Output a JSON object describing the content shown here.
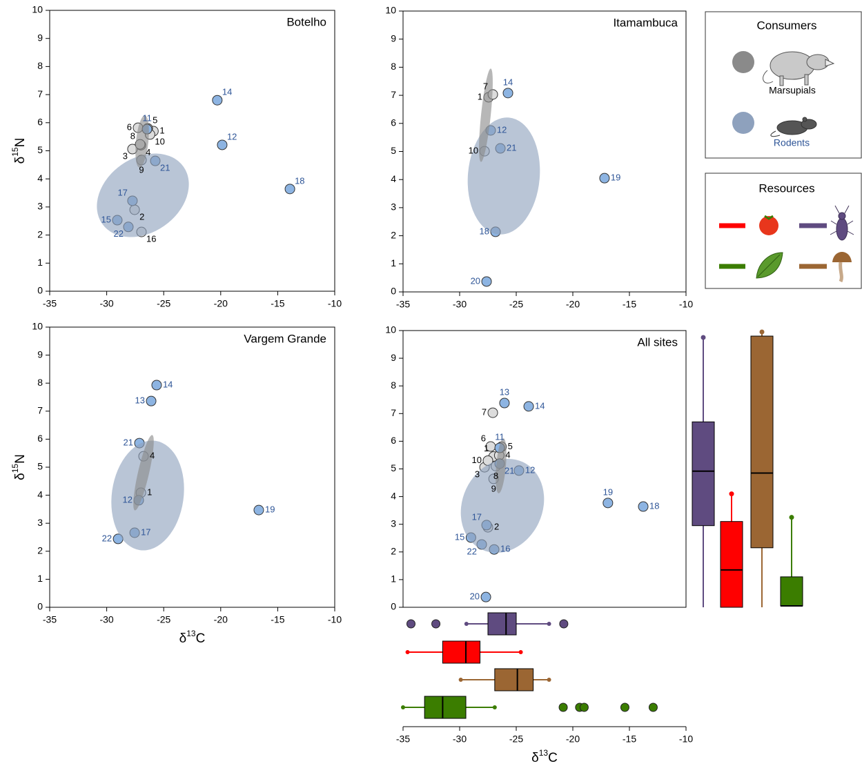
{
  "chart_data": [
    {
      "type": "scatter",
      "title": "Botelho",
      "xlim": [
        -35,
        -10
      ],
      "ylim": [
        0,
        10
      ],
      "xticks": [
        -35,
        -30,
        -25,
        -20,
        -15,
        -10
      ],
      "yticks": [
        0,
        1,
        2,
        3,
        4,
        5,
        6,
        7,
        8,
        9,
        10
      ],
      "ylabel": [
        "δ",
        "15",
        "N"
      ],
      "series": [
        {
          "color": "#dcdcdc",
          "label_color": "#000000",
          "labels": [
            "1",
            "2",
            "3",
            "4",
            "5",
            "6",
            "8",
            "9",
            "10",
            "16"
          ],
          "x": [
            -25.9,
            -27.55,
            -27.74,
            -27.0,
            -26.4,
            -27.25,
            -27.07,
            -26.95,
            -26.2,
            -26.95
          ],
          "y": [
            5.7,
            2.9,
            5.06,
            5.2,
            5.8,
            5.82,
            5.23,
            4.67,
            5.58,
            2.11
          ]
        },
        {
          "color": "#8db4e2",
          "label_color": "#2e5597",
          "labels": [
            "11",
            "12",
            "14",
            "15",
            "17",
            "18",
            "21",
            "22"
          ],
          "x": [
            -26.46,
            -19.87,
            -20.3,
            -29.07,
            -27.74,
            -13.93,
            -25.74,
            -28.1
          ],
          "y": [
            5.77,
            5.21,
            6.8,
            2.53,
            3.22,
            3.64,
            4.64,
            2.29
          ]
        }
      ]
    },
    {
      "type": "scatter",
      "title": "Itamambuca",
      "xlim": [
        -35,
        -10
      ],
      "ylim": [
        0,
        10
      ],
      "xticks": [
        -35,
        -30,
        -25,
        -20,
        -15,
        -10
      ],
      "yticks": [
        0,
        1,
        2,
        3,
        4,
        5,
        6,
        7,
        8,
        9,
        10
      ],
      "series": [
        {
          "color": "#dcdcdc",
          "label_color": "#000000",
          "labels": [
            "1",
            "7",
            "10"
          ],
          "x": [
            -27.44,
            -27.07,
            -27.8
          ],
          "y": [
            6.93,
            7.03,
            5.01
          ]
        },
        {
          "color": "#8db4e2",
          "label_color": "#2e5597",
          "labels": [
            "12",
            "14",
            "18",
            "19",
            "20",
            "21"
          ],
          "x": [
            -27.26,
            -25.73,
            -26.83,
            -17.2,
            -27.62,
            -26.4
          ],
          "y": [
            5.75,
            7.08,
            2.14,
            4.05,
            0.37,
            5.11
          ]
        }
      ]
    },
    {
      "type": "scatter",
      "title": "Vargem Grande",
      "xlim": [
        -35,
        -10
      ],
      "ylim": [
        0,
        10
      ],
      "xticks": [
        -35,
        -30,
        -25,
        -20,
        -15,
        -10
      ],
      "yticks": [
        0,
        1,
        2,
        3,
        4,
        5,
        6,
        7,
        8,
        9,
        10
      ],
      "ylabel": [
        "δ",
        "15",
        "N"
      ],
      "xlabel": [
        "δ",
        "13",
        "C"
      ],
      "series": [
        {
          "color": "#dcdcdc",
          "label_color": "#000000",
          "labels": [
            "1",
            "4"
          ],
          "x": [
            -27.0,
            -26.77
          ],
          "y": [
            4.09,
            5.39
          ]
        },
        {
          "color": "#8db4e2",
          "label_color": "#2e5597",
          "labels": [
            "12",
            "13",
            "14",
            "17",
            "19",
            "21",
            "22"
          ],
          "x": [
            -27.19,
            -26.1,
            -25.62,
            -27.55,
            -16.66,
            -27.13,
            -29.0
          ],
          "y": [
            3.82,
            7.36,
            7.93,
            2.66,
            3.47,
            5.86,
            2.44
          ]
        }
      ]
    },
    {
      "type": "scatter",
      "title": "All sites",
      "xlim": [
        -35,
        -10
      ],
      "ylim": [
        0,
        10
      ],
      "yticks": [
        0,
        1,
        2,
        3,
        4,
        5,
        6,
        7,
        8,
        9,
        10
      ],
      "series": [
        {
          "color": "#dcdcdc",
          "label_color": "#000000",
          "labels": [
            "1",
            "2",
            "3",
            "4",
            "5",
            "6",
            "7",
            "8",
            "9",
            "10"
          ],
          "x": [
            -27.0,
            -27.5,
            -27.8,
            -26.5,
            -26.3,
            -27.26,
            -27.07,
            -26.8,
            -27.0,
            -27.5
          ],
          "y": [
            5.45,
            2.89,
            5.06,
            5.49,
            5.8,
            5.81,
            7.03,
            5.1,
            4.64,
            5.3
          ]
        },
        {
          "color": "#8db4e2",
          "label_color": "#2e5597",
          "labels": [
            "11",
            "12",
            "13",
            "14",
            "15",
            "16",
            "17",
            "18",
            "19",
            "20",
            "21",
            "22"
          ],
          "x": [
            -26.46,
            -24.76,
            -26.04,
            -23.9,
            -29.0,
            -26.95,
            -27.62,
            -13.78,
            -16.9,
            -27.68,
            -26.46,
            -28.05
          ],
          "y": [
            5.76,
            4.94,
            7.38,
            7.26,
            2.52,
            2.09,
            2.97,
            3.64,
            3.77,
            0.37,
            5.19,
            2.27
          ]
        }
      ]
    },
    {
      "type": "hbox",
      "xlim": [
        -35,
        -10
      ],
      "xticks": [
        -35,
        -30,
        -25,
        -20,
        -15,
        -10
      ],
      "xlabel": [
        "δ",
        "13",
        "C"
      ],
      "boxes": [
        {
          "color": "#5f4b80",
          "whislo": -29.4,
          "q1": -27.5,
          "med": -25.9,
          "q3": -25.0,
          "whishi": -22.1,
          "fliers": [
            -34.3,
            -32.1,
            -20.8
          ]
        },
        {
          "color": "#ff0000",
          "whislo": -34.6,
          "q1": -31.5,
          "med": -29.45,
          "q3": -28.2,
          "whishi": -24.6,
          "fliers": []
        },
        {
          "color": "#9b6633",
          "whislo": -29.9,
          "q1": -26.9,
          "med": -24.9,
          "q3": -23.5,
          "whishi": -22.1,
          "fliers": []
        },
        {
          "color": "#3b7d00",
          "whislo": -35.0,
          "q1": -33.1,
          "med": -31.5,
          "q3": -29.45,
          "whishi": -26.9,
          "fliers": [
            -20.85,
            -19.4,
            -19.0,
            -15.4,
            -12.9
          ]
        }
      ]
    },
    {
      "type": "vbox",
      "ylim": [
        0,
        10
      ],
      "boxes": [
        {
          "color": "#5f4b80",
          "whislo": 0,
          "q1": 2.95,
          "med": 4.92,
          "q3": 6.7,
          "whishi": 9.75,
          "fliers": []
        },
        {
          "color": "#ff0000",
          "whislo": 0,
          "q1": 0,
          "med": 1.35,
          "q3": 3.1,
          "whishi": 4.1,
          "fliers": []
        },
        {
          "color": "#9b6633",
          "whislo": 0,
          "q1": 2.15,
          "med": 4.85,
          "q3": 9.8,
          "whishi": 9.95,
          "fliers": []
        },
        {
          "color": "#3b7d00",
          "whislo": 0.05,
          "q1": 0.05,
          "med": 0.05,
          "q3": 1.1,
          "whishi": 3.25,
          "fliers": []
        }
      ]
    }
  ],
  "legends": {
    "consumers": {
      "title": "Consumers",
      "entries": [
        {
          "name": "Marsupials",
          "color": "#8a8a8a"
        },
        {
          "name": "Rodents",
          "color": "#8ea1bd"
        }
      ]
    },
    "resources": {
      "title": "Resources",
      "colors": [
        "#ff0000",
        "#5f4b80",
        "#3b7d00",
        "#9b6633"
      ]
    }
  }
}
